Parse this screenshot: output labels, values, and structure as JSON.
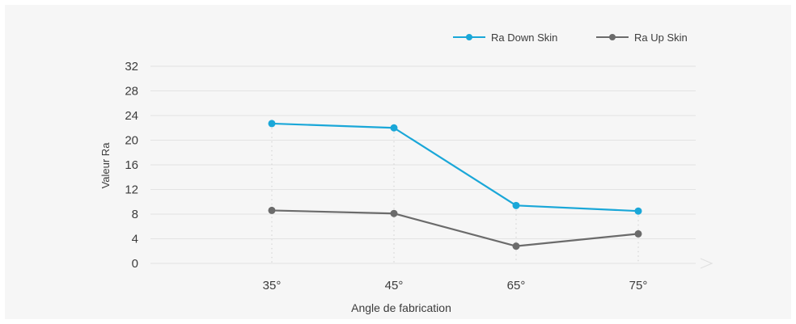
{
  "chart_data": {
    "type": "line",
    "title": "",
    "xlabel": "Angle de fabrication",
    "ylabel": "Valeur Ra",
    "categories": [
      "35°",
      "45°",
      "65°",
      "75°"
    ],
    "y_ticks": [
      "0",
      "4",
      "8",
      "12",
      "16",
      "20",
      "24",
      "28",
      "32"
    ],
    "ylim": [
      0,
      32
    ],
    "grid": true,
    "legend_position": "top-right",
    "series": [
      {
        "name": "Ra Down Skin",
        "color": "#1aa7d8",
        "values": [
          22.7,
          22.0,
          9.4,
          8.5
        ]
      },
      {
        "name": "Ra Up Skin",
        "color": "#6b6b6b",
        "values": [
          8.6,
          8.1,
          2.8,
          4.8
        ]
      }
    ]
  }
}
